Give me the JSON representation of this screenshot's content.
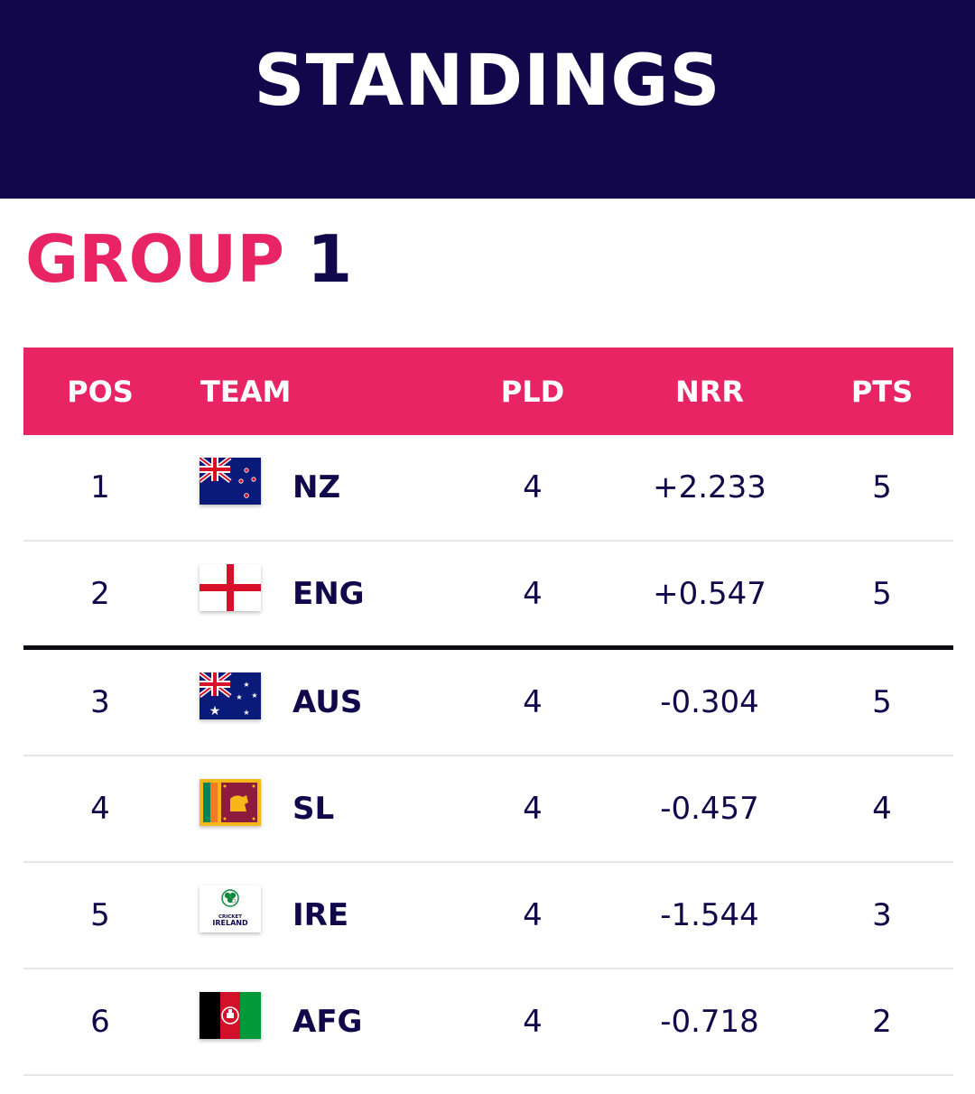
{
  "header": {
    "title": "STANDINGS"
  },
  "group": {
    "label_a": "GROUP",
    "label_b": "1"
  },
  "table": {
    "columns": {
      "pos": "POS",
      "team": "TEAM",
      "pld": "PLD",
      "nrr": "NRR",
      "pts": "PTS"
    },
    "rows": [
      {
        "pos": "1",
        "team": "NZ",
        "flag": "nz-flag-icon",
        "pld": "4",
        "nrr": "+2.233",
        "pts": "5"
      },
      {
        "pos": "2",
        "team": "ENG",
        "flag": "eng-flag-icon",
        "pld": "4",
        "nrr": "+0.547",
        "pts": "5"
      },
      {
        "pos": "3",
        "team": "AUS",
        "flag": "aus-flag-icon",
        "pld": "4",
        "nrr": "-0.304",
        "pts": "5"
      },
      {
        "pos": "4",
        "team": "SL",
        "flag": "sl-flag-icon",
        "pld": "4",
        "nrr": "-0.457",
        "pts": "4"
      },
      {
        "pos": "5",
        "team": "IRE",
        "flag": "ire-logo-icon",
        "pld": "4",
        "nrr": "-1.544",
        "pts": "3"
      },
      {
        "pos": "6",
        "team": "AFG",
        "flag": "afg-flag-icon",
        "pld": "4",
        "nrr": "-0.718",
        "pts": "2"
      }
    ]
  },
  "ireland_logo_text": {
    "line1": "CRICKET",
    "line2": "IRELAND"
  },
  "colors": {
    "header_bg": "#11074a",
    "accent": "#e82464",
    "text": "#10084a"
  }
}
